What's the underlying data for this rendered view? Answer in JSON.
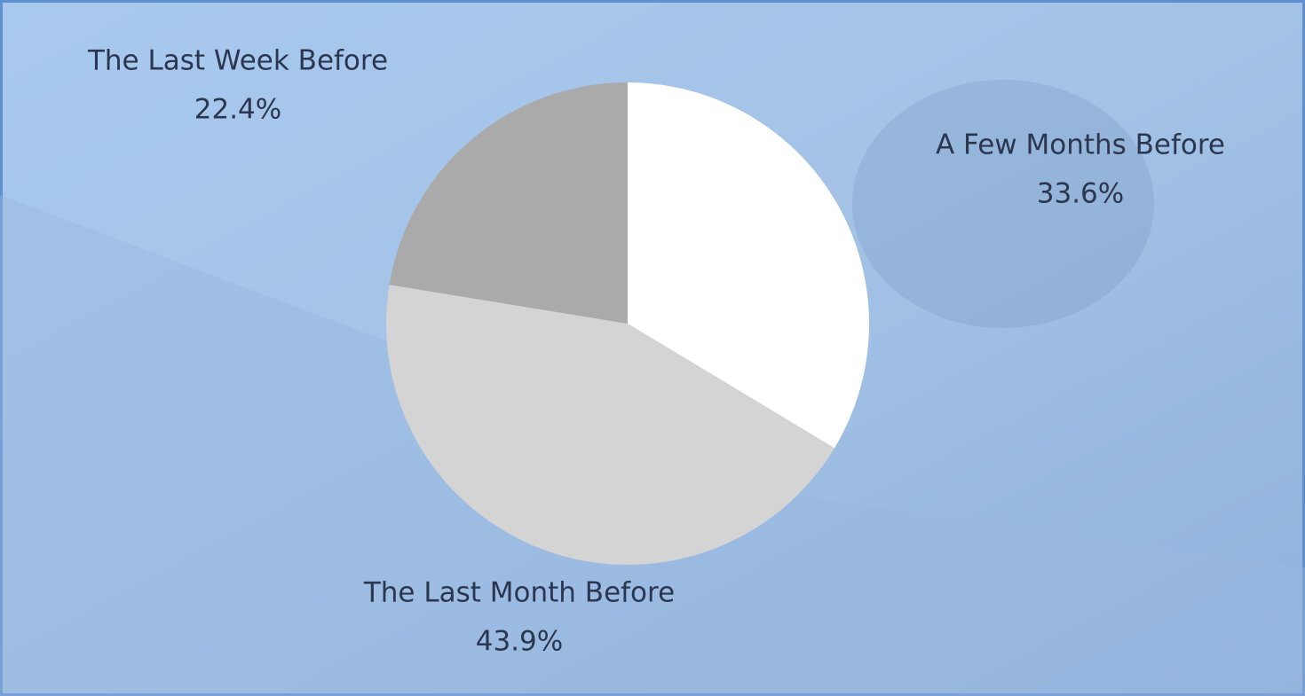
{
  "chart_data": {
    "type": "pie",
    "categories": [
      "A Few Months Before",
      "The Last Month Before",
      "The Last Week Before"
    ],
    "values": [
      33.6,
      43.9,
      22.4
    ],
    "value_labels": [
      "33.6%",
      "43.9%",
      "22.4%"
    ],
    "colors": [
      "#ffffff",
      "#d4d4d4",
      "#aaaaaa"
    ]
  }
}
